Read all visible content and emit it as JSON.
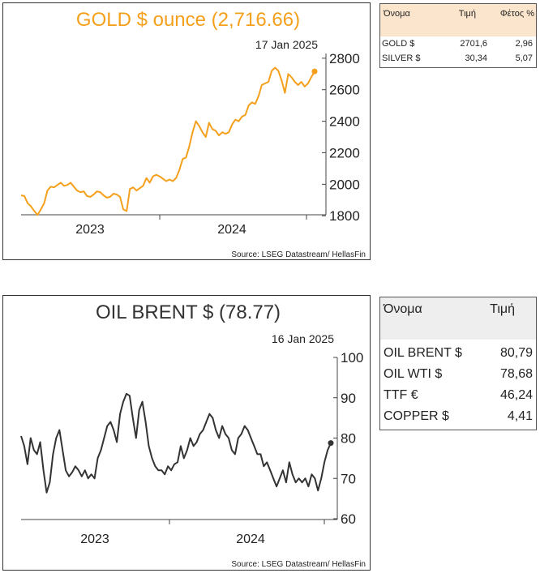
{
  "gold_chart": {
    "title": "GOLD $ ounce (2,716.66)",
    "date": "17 Jan 2025",
    "source": "Source: LSEG Datastream/ HellasFin",
    "color": "#f5a01c",
    "chart_data": {
      "type": "line",
      "title": "GOLD $ ounce (2,716.66)",
      "xlabel": "",
      "ylabel": "",
      "x_start": "2022-06",
      "x_end": "2025-01-17",
      "x_tick_labels": [
        "2023",
        "2024"
      ],
      "y_ticks": [
        1800,
        2000,
        2200,
        2400,
        2600,
        2800
      ],
      "ylim": [
        1760,
        2830
      ],
      "grid": false,
      "series": [
        {
          "values": [
            1930,
            1925,
            1880,
            1860,
            1830,
            1805,
            1840,
            1880,
            1960,
            1985,
            1980,
            1995,
            2010,
            1990,
            1995,
            2010,
            1985,
            1960,
            1950,
            1955,
            1925,
            1920,
            1935,
            1955,
            1950,
            1930,
            1915,
            1920,
            1940,
            1935,
            1920,
            1840,
            1830,
            1970,
            1980,
            1960,
            1975,
            1990,
            2040,
            2010,
            2050,
            2060,
            2050,
            2035,
            2020,
            2030,
            2020,
            2040,
            2090,
            2160,
            2170,
            2240,
            2330,
            2400,
            2370,
            2330,
            2300,
            2390,
            2350,
            2340,
            2310,
            2330,
            2320,
            2330,
            2380,
            2410,
            2400,
            2430,
            2440,
            2500,
            2520,
            2510,
            2560,
            2630,
            2640,
            2650,
            2720,
            2740,
            2720,
            2660,
            2580,
            2700,
            2680,
            2650,
            2630,
            2650,
            2620,
            2640,
            2680,
            2716
          ]
        }
      ],
      "last_point": 2716.66
    }
  },
  "gold_table": {
    "headers": [
      "Όνομα",
      "Τιμή",
      "Φέτος %"
    ],
    "rows": [
      [
        "GOLD $",
        "2701,6",
        "2,96"
      ],
      [
        "SILVER $",
        "30,34",
        "5,07"
      ]
    ]
  },
  "oil_chart": {
    "title": "OIL BRENT $ (78.77)",
    "date": "16 Jan 2025",
    "source": "Source: LSEG Datastream/ HellasFin",
    "color": "#333333",
    "chart_data": {
      "type": "line",
      "title": "OIL BRENT $ (78.77)",
      "xlabel": "",
      "ylabel": "",
      "x_start": "2022-06",
      "x_end": "2025-01-16",
      "x_tick_labels": [
        "2023",
        "2024"
      ],
      "y_ticks": [
        60,
        70,
        80,
        90,
        100
      ],
      "ylim": [
        60,
        100
      ],
      "grid": false,
      "series": [
        {
          "values": [
            80.5,
            78,
            73.5,
            80,
            77,
            76,
            79,
            72,
            66.5,
            69,
            76,
            80,
            82,
            77,
            72,
            70.5,
            71.5,
            73,
            72,
            70.5,
            72,
            70,
            71,
            70,
            75,
            77,
            80,
            83,
            84,
            82,
            79,
            86,
            89,
            91,
            90.5,
            85,
            80,
            87,
            89,
            84,
            78,
            75,
            73,
            72,
            72,
            71,
            73,
            72,
            73.5,
            74,
            78,
            75,
            77,
            80,
            78,
            79,
            81,
            82,
            84,
            86,
            85,
            82,
            80,
            83,
            81,
            80,
            77,
            76,
            80,
            81,
            83,
            82,
            80,
            78,
            76,
            76,
            73,
            74,
            72,
            70,
            68,
            70,
            72,
            69,
            74,
            71,
            69,
            70,
            69,
            70,
            68,
            71,
            70,
            67,
            70,
            74,
            77,
            78.77
          ]
        }
      ],
      "last_point": 78.77
    }
  },
  "oil_table": {
    "headers": [
      "Όνομα",
      "Τιμή"
    ],
    "rows": [
      [
        "OIL BRENT $",
        "80,79"
      ],
      [
        "OIL WTI $",
        "78,68"
      ],
      [
        "TTF €",
        "46,24"
      ],
      [
        "COPPER $",
        "4,41"
      ]
    ]
  }
}
